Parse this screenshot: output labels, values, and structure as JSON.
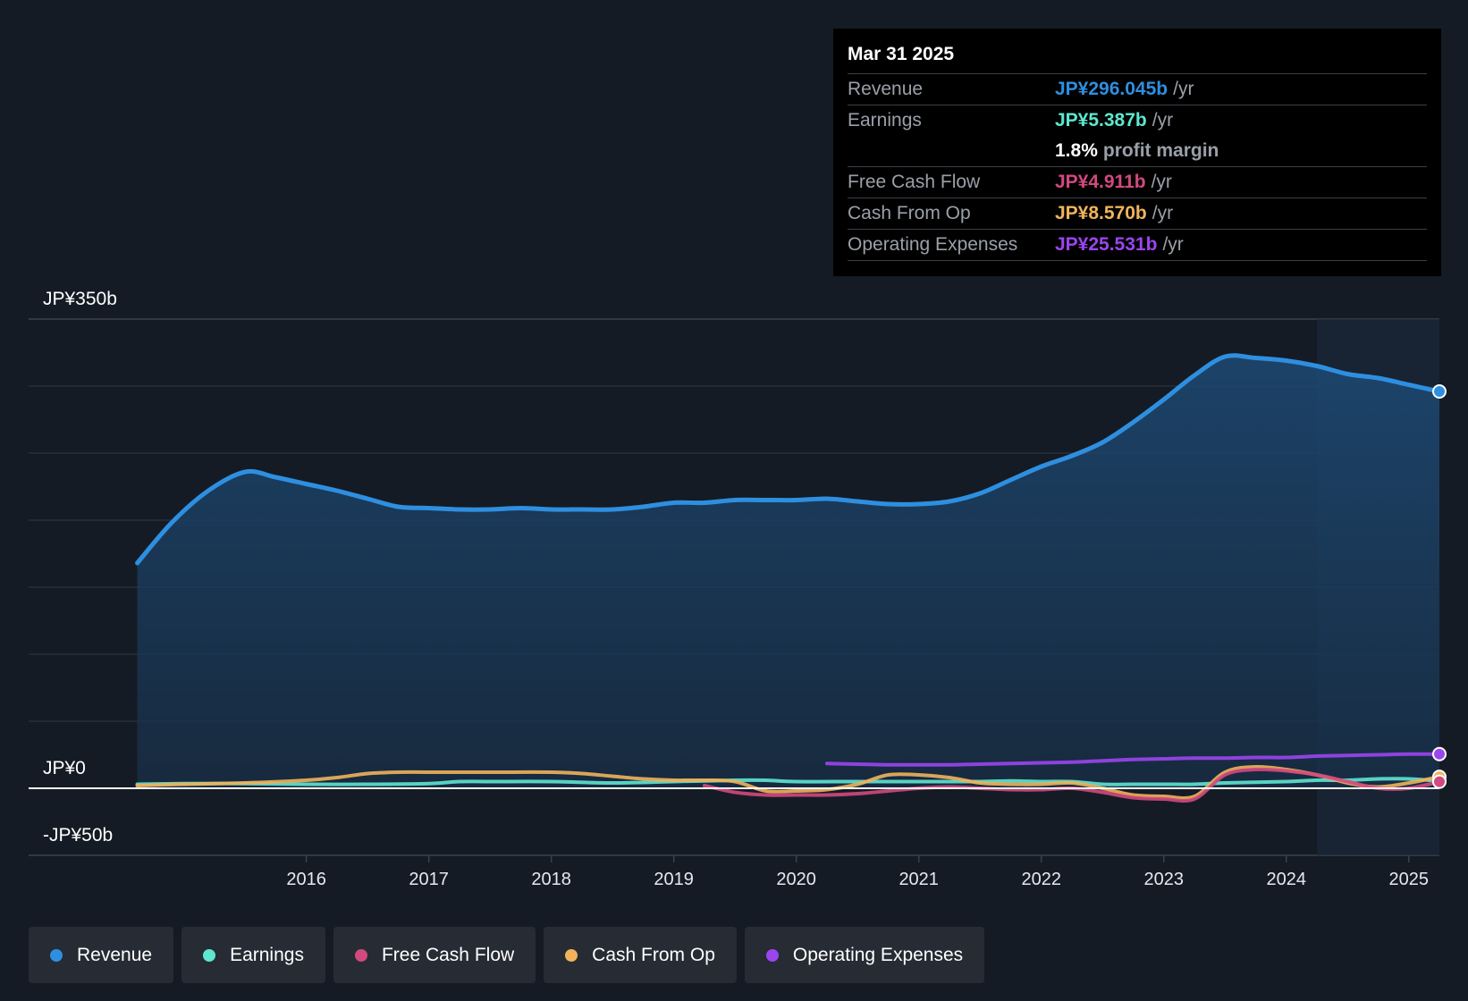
{
  "tooltip": {
    "date": "Mar 31 2025",
    "rows": [
      {
        "label": "Revenue",
        "value": "JP¥296.045b",
        "unit": "/yr",
        "color": "#2e8fe0"
      },
      {
        "label": "Earnings",
        "value": "JP¥5.387b",
        "unit": "/yr",
        "color": "#5ee6d0"
      },
      {
        "label": "",
        "margin_pct": "1.8%",
        "margin_text": "profit margin"
      },
      {
        "label": "Free Cash Flow",
        "value": "JP¥4.911b",
        "unit": "/yr",
        "color": "#d1497f"
      },
      {
        "label": "Cash From Op",
        "value": "JP¥8.570b",
        "unit": "/yr",
        "color": "#f0b35c"
      },
      {
        "label": "Operating Expenses",
        "value": "JP¥25.531b",
        "unit": "/yr",
        "color": "#9b45ef"
      }
    ]
  },
  "legend": [
    {
      "label": "Revenue",
      "color": "#2e8fe0"
    },
    {
      "label": "Earnings",
      "color": "#5ee6d0"
    },
    {
      "label": "Free Cash Flow",
      "color": "#d1497f"
    },
    {
      "label": "Cash From Op",
      "color": "#f0b35c"
    },
    {
      "label": "Operating Expenses",
      "color": "#9b45ef"
    }
  ],
  "chart_data": {
    "type": "area",
    "ylim": [
      -50,
      350
    ],
    "y_tick_labels": [
      "JP¥350b",
      "JP¥0",
      "-JP¥50b"
    ],
    "x_tick_labels": [
      "2016",
      "2017",
      "2018",
      "2019",
      "2020",
      "2021",
      "2022",
      "2023",
      "2024",
      "2025"
    ],
    "x_ticks": [
      2016,
      2017,
      2018,
      2019,
      2020,
      2021,
      2022,
      2023,
      2024,
      2025
    ],
    "xlim": [
      2014.2,
      2025.25
    ],
    "highlight_from": 2024.25,
    "grid": true,
    "series": [
      {
        "name": "Revenue",
        "color": "#2e8fe0",
        "area": true,
        "x": [
          2014.62,
          2014.9,
          2015.2,
          2015.5,
          2015.75,
          2016.0,
          2016.25,
          2016.5,
          2016.75,
          2017.0,
          2017.25,
          2017.5,
          2017.75,
          2018.0,
          2018.25,
          2018.5,
          2018.75,
          2019.0,
          2019.25,
          2019.5,
          2019.75,
          2020.0,
          2020.25,
          2020.5,
          2020.75,
          2021.0,
          2021.25,
          2021.5,
          2021.75,
          2022.0,
          2022.25,
          2022.5,
          2022.75,
          2023.0,
          2023.25,
          2023.5,
          2023.75,
          2024.0,
          2024.25,
          2024.5,
          2024.75,
          2025.0,
          2025.25
        ],
        "values": [
          168,
          198,
          222,
          236,
          232,
          227,
          222,
          216,
          210,
          209,
          208,
          208,
          209,
          208,
          208,
          208,
          210,
          213,
          213,
          215,
          215,
          215,
          216,
          214,
          212,
          212,
          214,
          220,
          230,
          240,
          248,
          258,
          273,
          290,
          308,
          322,
          321,
          319,
          315,
          309,
          306,
          301,
          296
        ]
      },
      {
        "name": "Earnings",
        "color": "#5ee6d0",
        "x": [
          2014.62,
          2015.0,
          2015.5,
          2016.0,
          2016.5,
          2017.0,
          2017.25,
          2017.5,
          2018.0,
          2018.5,
          2019.0,
          2019.5,
          2019.75,
          2020.0,
          2020.5,
          2021.0,
          2021.5,
          2021.75,
          2022.0,
          2022.25,
          2022.5,
          2022.75,
          2023.0,
          2023.25,
          2023.5,
          2024.0,
          2024.25,
          2024.5,
          2024.75,
          2025.0,
          2025.25
        ],
        "values": [
          3,
          3.5,
          3.5,
          3,
          3,
          3.5,
          5,
          5,
          5,
          4,
          5,
          6,
          6,
          5,
          5,
          5,
          5,
          5.5,
          5,
          5,
          3,
          3,
          3,
          3,
          4,
          5,
          6,
          6,
          7,
          7,
          5.4
        ]
      },
      {
        "name": "Free Cash Flow",
        "color": "#d1497f",
        "x": [
          2019.25,
          2019.5,
          2019.75,
          2020.0,
          2020.25,
          2020.5,
          2020.75,
          2021.0,
          2021.25,
          2021.5,
          2021.75,
          2022.0,
          2022.25,
          2022.5,
          2022.75,
          2023.0,
          2023.25,
          2023.5,
          2023.75,
          2024.0,
          2024.25,
          2024.5,
          2024.75,
          2025.0,
          2025.25
        ],
        "values": [
          2,
          -3,
          -5,
          -5,
          -5,
          -4,
          -2,
          0,
          1,
          0,
          -1,
          -1,
          0,
          -3,
          -7,
          -8,
          -8,
          10,
          14,
          13,
          10,
          5,
          0,
          0,
          4.9
        ]
      },
      {
        "name": "Cash From Op",
        "color": "#f0b35c",
        "x": [
          2014.62,
          2015.0,
          2015.5,
          2016.0,
          2016.25,
          2016.5,
          2016.75,
          2017.0,
          2017.5,
          2018.0,
          2018.25,
          2018.5,
          2018.75,
          2019.0,
          2019.25,
          2019.5,
          2019.75,
          2020.0,
          2020.25,
          2020.5,
          2020.75,
          2021.0,
          2021.25,
          2021.5,
          2021.75,
          2022.0,
          2022.25,
          2022.5,
          2022.75,
          2023.0,
          2023.25,
          2023.5,
          2023.75,
          2024.0,
          2024.25,
          2024.5,
          2024.75,
          2025.0,
          2025.25
        ],
        "values": [
          2,
          3,
          4,
          6,
          8,
          11,
          12,
          12,
          12,
          12,
          11,
          9,
          7,
          6,
          6,
          5,
          -2,
          -2,
          -1,
          3,
          10,
          10,
          8,
          4,
          3,
          3,
          4,
          0,
          -5,
          -6,
          -6,
          12,
          16,
          14,
          10,
          4,
          1,
          4,
          8.6
        ]
      },
      {
        "name": "Operating Expenses",
        "color": "#9b45ef",
        "x": [
          2020.25,
          2020.5,
          2020.75,
          2021.0,
          2021.25,
          2021.5,
          2021.75,
          2022.0,
          2022.25,
          2022.5,
          2022.75,
          2023.0,
          2023.25,
          2023.5,
          2023.75,
          2024.0,
          2024.25,
          2024.5,
          2024.75,
          2025.0,
          2025.25
        ],
        "values": [
          18.5,
          18,
          17.5,
          17.5,
          17.5,
          18,
          18.5,
          19,
          19.5,
          20.5,
          21.5,
          22,
          22.5,
          22.5,
          23,
          23,
          24,
          24.5,
          25,
          25.5,
          25.5
        ]
      }
    ]
  }
}
